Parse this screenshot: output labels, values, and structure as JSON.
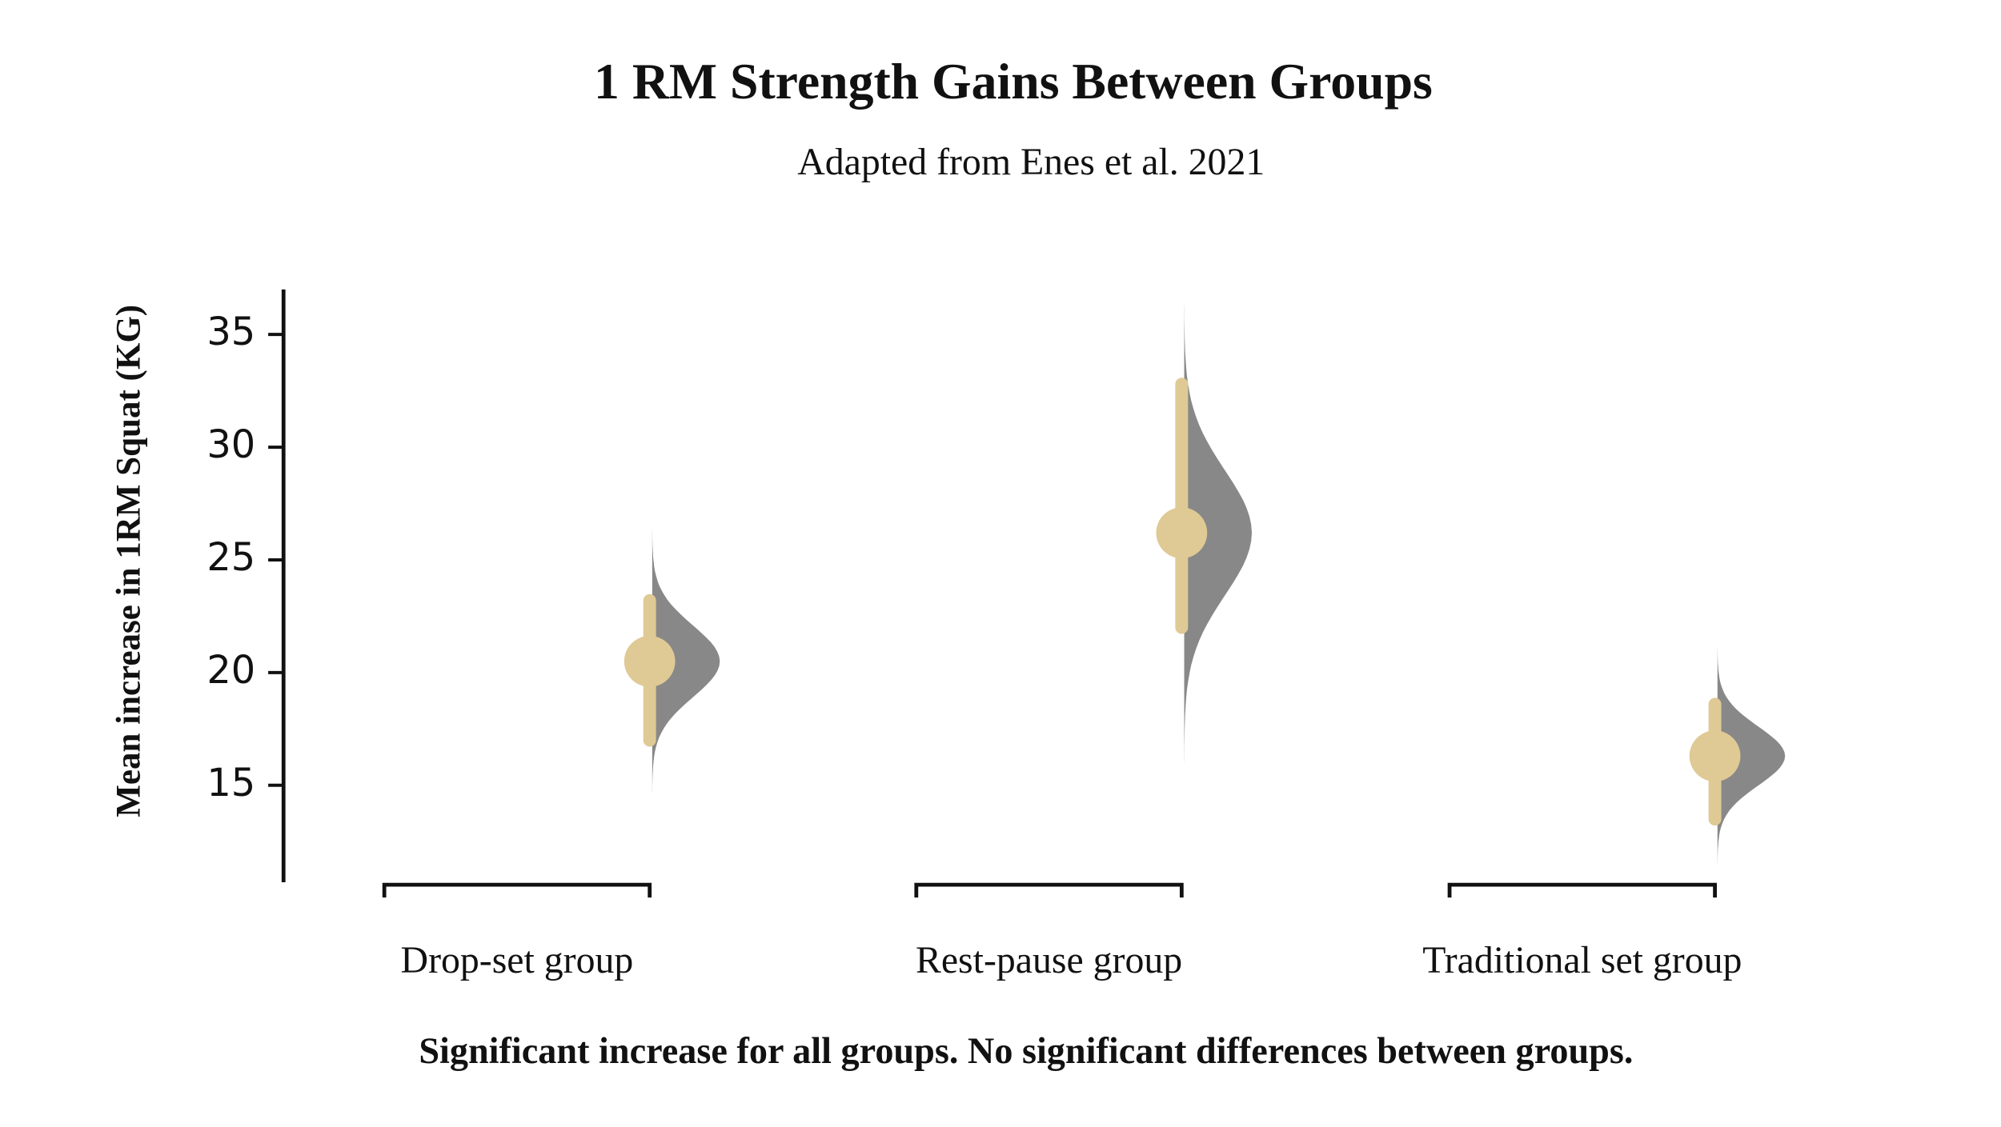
{
  "chart_data": {
    "type": "estimation",
    "title": "1 RM Strength Gains Between Groups",
    "subtitle": "Adapted from Enes et al. 2021",
    "y_label": "Mean increase in 1RM Squat (KG)",
    "footer": "Significant increase for all groups. No significant differences between groups.",
    "categories": [
      "Drop-set group",
      "Rest-pause group",
      "Traditional set group"
    ],
    "values": [
      20.5,
      26.2,
      16.3
    ],
    "ci_low": [
      17.0,
      22.0,
      13.5
    ],
    "ci_high": [
      23.2,
      32.8,
      18.6
    ],
    "color": "#dfca95",
    "distribution_color": "#888888",
    "ylim": [
      10.7,
      37
    ],
    "yticks": [
      15,
      20,
      25,
      30,
      35
    ]
  }
}
